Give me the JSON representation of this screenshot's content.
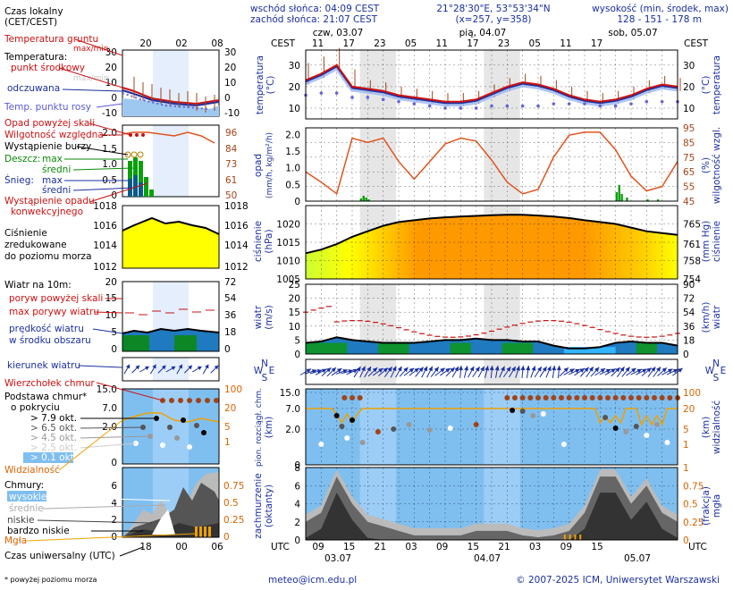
{
  "header": {
    "sunrise": "wschód słońca: 04:09 CEST",
    "sunset": "zachód słońca: 21:07 CEST",
    "coords": "21°28'30\"E, 53°53'34\"N",
    "grid": "(x=257,  y=358)",
    "elev_title": "wysokość (min, środek, max)",
    "elev_values": "128 - 151 - 178 m"
  },
  "time_axis": {
    "tz_local": "CEST",
    "tz_utc": "UTC",
    "top_hours": [
      "11",
      "17",
      "23",
      "05",
      "11",
      "17",
      "23",
      "05",
      "11",
      "17"
    ],
    "bottom_hours": [
      "09",
      "15",
      "21",
      "03",
      "09",
      "15",
      "21",
      "03",
      "09",
      "15"
    ],
    "days_top": [
      "czw, 03.07",
      "pią, 04.07",
      "sob, 05.07"
    ],
    "days_bottom": [
      "03.07",
      "04.07",
      "05.07"
    ]
  },
  "legend": {
    "local_time": "Czas lokalny",
    "local_time_sub": "(CET/CEST)",
    "local_ticks": [
      "20",
      "02",
      "08"
    ],
    "utc_time": "Czas uniwersalny (UTC)",
    "utc_ticks": [
      "18",
      "00",
      "06"
    ],
    "temp": {
      "ground": "Temperatura gruntu",
      "ground_sub": "max/min",
      "title": "Temperatura:",
      "mid": "punkt środkowy",
      "maxmin": "max/min",
      "perceived": "odczuwana",
      "dew": "Temp. punktu rosy",
      "ticks": [
        "30",
        "20",
        "10",
        "0",
        "-10"
      ]
    },
    "precip": {
      "above": "Opad powyżej skali",
      "humidity": "Wilgotność względna",
      "storm": "Wystąpienie burzy",
      "rain": "Deszcz:",
      "rain_max": "max",
      "rain_mid": "średni",
      "snow": "Śnieg:",
      "snow_max": "max",
      "snow_mid": "średni",
      "occurrence_1": "Wystąpienie opadu",
      "occurrence_2": "konwekcyjnego",
      "left_ticks": [
        "2.0",
        "1.5",
        "1.0",
        "0.5",
        "0"
      ],
      "right_ticks": [
        "96",
        "84",
        "73",
        "61",
        "50"
      ]
    },
    "pressure": {
      "l1": "Ciśnienie",
      "l2": "zredukowane",
      "l3": "do poziomu morza",
      "ticks": [
        "1018",
        "1016",
        "1014",
        "1012"
      ]
    },
    "wind": {
      "title": "Wiatr na 10m:",
      "gusts_above": "poryw powyżej skali",
      "gusts_max": "max porywy wiatru",
      "speed": "prędkość wiatru",
      "speed_sub": "w środku obszaru",
      "left_ticks": [
        "20",
        "15",
        "10",
        "5",
        "0"
      ],
      "right_ticks": [
        "72",
        "54",
        "36",
        "18",
        "0"
      ]
    },
    "direction": "kierunek wiatru",
    "clouds_base": {
      "tops": "Wierzchołek chmur",
      "base1": "Podstawa chmur*",
      "base2": "o pokryciu",
      "o79": "> 7.9 okt.",
      "o65": "> 6.5 okt.",
      "o45": "> 4.5 okt.",
      "o25": "> 2.5 okt.",
      "o01": "> 0.1 okt.",
      "visibility": "Widzialność",
      "left_ticks": [
        "15.0",
        "7.0",
        "2.0",
        "0"
      ],
      "right_ticks": [
        "100",
        "20",
        "5",
        "1"
      ]
    },
    "clouds": {
      "title": "Chmury:",
      "high": "wysokie",
      "mid": "średnie",
      "low": "niskie",
      "vlow": "bardzo niskie",
      "fog": "Mgła",
      "left_ticks": [
        "6",
        "4",
        "2",
        "0"
      ],
      "right_ticks": [
        "0.75",
        "0.5",
        "0.25",
        "0"
      ]
    },
    "footnote": "* powyżej poziomu morza"
  },
  "panels": {
    "temp": {
      "ylabel_l1": "temperatura",
      "ylabel_l2": "(°C)",
      "ylabel_r1": "temperatura",
      "ylabel_r2": "(°C)",
      "ticks": [
        "30",
        "20",
        "10"
      ]
    },
    "precip": {
      "ylabel_l1": "opad",
      "ylabel_l2": "(mm/h, kg/m²/h)",
      "ylabel_r1": "wilgotność wzgl.",
      "ylabel_r2": "(%)",
      "left_ticks": [
        "2.0",
        "1.5",
        "1.0",
        "0.5",
        "0"
      ],
      "right_ticks": [
        "95",
        "85",
        "75",
        "65",
        "55",
        "45"
      ]
    },
    "pressure": {
      "ylabel_l1": "ciśnienie",
      "ylabel_l2": "(hPa)",
      "ylabel_r1": "ciśnienie",
      "ylabel_r2": "(mm Hg)",
      "left_ticks": [
        "1020",
        "1015",
        "1010",
        "1005"
      ],
      "right_ticks": [
        "765",
        "761",
        "758",
        "754"
      ]
    },
    "wind": {
      "ylabel_l1": "wiatr",
      "ylabel_l2": "(m/s)",
      "ylabel_r1": "wiatr",
      "ylabel_r2": "(km/h)",
      "left_ticks": [
        "25",
        "20",
        "15",
        "10",
        "5",
        "0"
      ],
      "right_ticks": [
        "90",
        "72",
        "54",
        "36",
        "18",
        "0"
      ]
    },
    "direction": {
      "compass_n": "N",
      "compass_w": "W",
      "compass_e": "E",
      "compass_s": "S"
    },
    "clouds_base": {
      "ylabel_l1": "pion. rozciągł. chm.",
      "ylabel_l2": "(km)",
      "ylabel_r1": "widzialność",
      "ylabel_r2": "(km)",
      "left_ticks": [
        "15.0",
        "7.0",
        "2.0",
        "0"
      ],
      "right_ticks": [
        "100",
        "20",
        "5",
        "1"
      ]
    },
    "clouds": {
      "ylabel_l1": "zachmurzenie",
      "ylabel_l2": "(oktanty)",
      "ylabel_r1": "mgła",
      "ylabel_r2": "(frakcja)",
      "left_ticks": [
        "8",
        "6",
        "4",
        "2",
        "0"
      ],
      "right_ticks": [
        "1",
        "0.75",
        "0.5",
        "0.25",
        "0"
      ]
    }
  },
  "footer": {
    "email": "meteo@icm.edu.pl",
    "copyright": "© 2007-2025 ICM, Uniwersytet Warszawski"
  },
  "chart_data": [
    {
      "type": "line",
      "name": "temperature",
      "ylim": [
        5,
        37
      ],
      "x": [
        0,
        3,
        6,
        9,
        12,
        15,
        18,
        21,
        24,
        27,
        30,
        33,
        36,
        39,
        42,
        45,
        48,
        51,
        54,
        57,
        60,
        63,
        66,
        69,
        72
      ],
      "series": [
        {
          "values": [
            23,
            26,
            30,
            20,
            19,
            18,
            16,
            15,
            14,
            13,
            13,
            14,
            17,
            20,
            22,
            21,
            19,
            16,
            14,
            13,
            14,
            16,
            19,
            21,
            20
          ]
        },
        {
          "values": [
            16,
            17,
            17,
            15,
            15,
            14,
            13,
            12,
            11,
            10,
            10,
            10,
            11,
            11,
            11,
            11,
            12,
            12,
            12,
            11,
            11,
            12,
            13,
            13,
            13
          ]
        }
      ]
    },
    {
      "type": "line",
      "name": "humidity",
      "ylim": [
        45,
        95
      ],
      "x": [
        0,
        3,
        6,
        9,
        12,
        15,
        18,
        21,
        24,
        27,
        30,
        33,
        36,
        39,
        42,
        45,
        48,
        51,
        54,
        57,
        60,
        63,
        66,
        69,
        72
      ],
      "series": [
        {
          "values": [
            65,
            58,
            50,
            88,
            85,
            88,
            72,
            60,
            72,
            84,
            88,
            86,
            73,
            58,
            50,
            53,
            75,
            90,
            92,
            92,
            80,
            62,
            52,
            55,
            72
          ]
        }
      ]
    },
    {
      "type": "line",
      "name": "pressure",
      "ylim": [
        1005,
        1025
      ],
      "x": [
        0,
        3,
        6,
        9,
        12,
        15,
        18,
        21,
        24,
        27,
        30,
        33,
        36,
        39,
        42,
        45,
        48,
        51,
        54,
        57,
        60,
        63,
        66,
        69,
        72
      ],
      "series": [
        {
          "values": [
            1012,
            1013,
            1014.5,
            1016.5,
            1018,
            1019.5,
            1020.5,
            1021,
            1021.5,
            1021.8,
            1022,
            1022.2,
            1022.4,
            1022.5,
            1022.5,
            1022.3,
            1022,
            1021.6,
            1021,
            1020.5,
            1020,
            1019,
            1018,
            1017.5,
            1017
          ]
        }
      ]
    },
    {
      "type": "area",
      "name": "wind_speed",
      "ylim": [
        0,
        25
      ],
      "x": [
        0,
        3,
        6,
        9,
        12,
        15,
        18,
        21,
        24,
        27,
        30,
        33,
        36,
        39,
        42,
        45,
        48,
        51,
        54,
        57,
        60,
        63,
        66,
        69,
        72
      ],
      "series": [
        {
          "values": [
            4,
            4.5,
            6,
            5,
            4.5,
            4,
            4,
            4,
            4.5,
            5,
            5,
            5.5,
            5,
            5,
            4.5,
            4.5,
            3,
            2,
            2,
            2.5,
            4,
            4.5,
            4,
            4,
            3
          ]
        }
      ]
    },
    {
      "type": "area",
      "name": "cloud_cover",
      "ylim": [
        0,
        8
      ],
      "x": [
        0,
        3,
        6,
        9,
        12,
        15,
        18,
        21,
        24,
        27,
        30,
        33,
        36,
        39,
        42,
        45,
        48,
        51,
        54,
        57,
        60,
        63,
        66,
        69,
        72
      ],
      "series": [
        {
          "values": [
            2,
            3,
            7,
            4,
            2,
            1.5,
            1,
            0.5,
            0.5,
            0.5,
            0.5,
            1,
            1,
            1,
            0.5,
            0.3,
            0.5,
            1,
            3,
            7,
            7,
            4,
            6,
            3,
            2
          ]
        }
      ]
    }
  ]
}
